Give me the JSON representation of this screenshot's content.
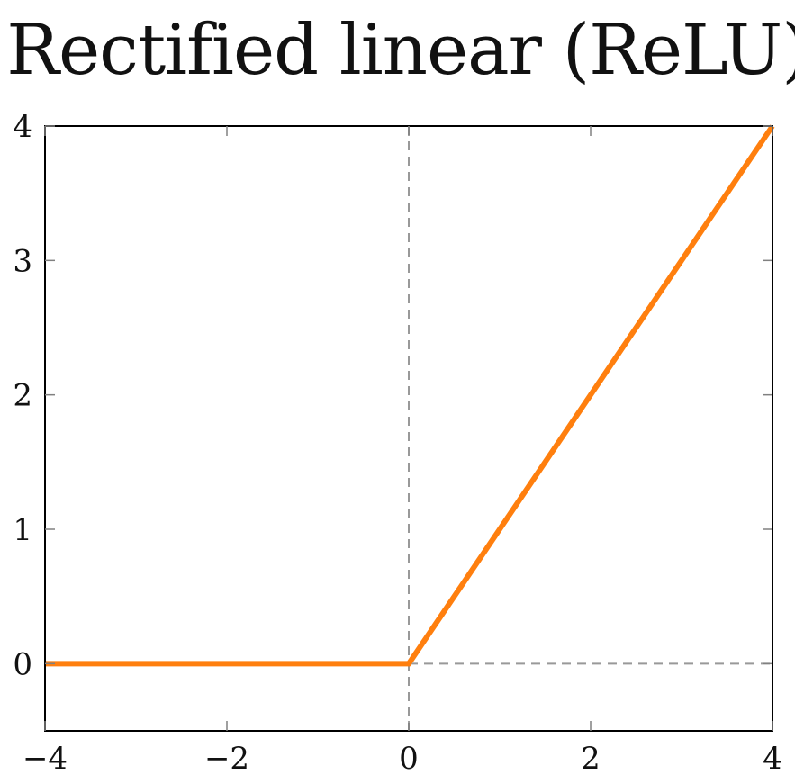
{
  "chart_data": {
    "type": "line",
    "title": "Rectified linear (ReLU)",
    "xlabel": "",
    "ylabel": "",
    "xlim": [
      -4,
      4
    ],
    "ylim": [
      -0.5,
      4
    ],
    "x_ticks": [
      -4,
      -2,
      0,
      2,
      4
    ],
    "x_tick_labels": [
      "−4",
      "−2",
      "0",
      "2",
      "4"
    ],
    "y_ticks": [
      0,
      1,
      2,
      3,
      4
    ],
    "y_tick_labels": [
      "0",
      "1",
      "2",
      "3",
      "4"
    ],
    "grid": false,
    "reference_lines": [
      {
        "orientation": "vertical",
        "value": 0,
        "style": "dashed",
        "color": "#999999",
        "from": -0.5,
        "to": 4
      },
      {
        "orientation": "horizontal",
        "value": 0,
        "style": "dashed",
        "color": "#999999",
        "from": 0,
        "to": 4
      }
    ],
    "series": [
      {
        "color": "#ff7f0e",
        "x": [
          -4,
          0,
          4
        ],
        "y": [
          0,
          0,
          4
        ]
      }
    ]
  }
}
